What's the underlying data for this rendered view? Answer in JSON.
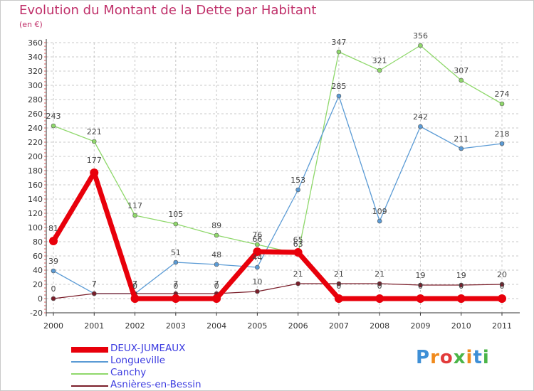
{
  "title": "Evolution du Montant de la Dette par Habitant",
  "subtitle": "(en €)",
  "logo_text": "Proxiti",
  "chart_data": {
    "type": "line",
    "title": "Evolution du Montant de la Dette par Habitant",
    "subtitle": "(en €)",
    "xlabel": "",
    "ylabel": "",
    "categories": [
      "2000",
      "2001",
      "2002",
      "2003",
      "2004",
      "2005",
      "2006",
      "2007",
      "2008",
      "2009",
      "2010",
      "2011"
    ],
    "ylim": [
      -20,
      360
    ],
    "yticks": [
      -20,
      0,
      20,
      40,
      60,
      80,
      100,
      120,
      140,
      160,
      180,
      200,
      220,
      240,
      260,
      280,
      300,
      320,
      340,
      360
    ],
    "grid": true,
    "legend_position": "bottom-left",
    "series": [
      {
        "name": "DEUX-JUMEAUX",
        "color": "#e8000b",
        "values": [
          81,
          177,
          0,
          0,
          0,
          66,
          65,
          0,
          0,
          0,
          0,
          0
        ]
      },
      {
        "name": "Longueville",
        "color": "#5b9bd5",
        "values": [
          39,
          7,
          7,
          51,
          48,
          44,
          153,
          285,
          109,
          242,
          211,
          218
        ]
      },
      {
        "name": "Canchy",
        "color": "#8fd86b",
        "values": [
          243,
          221,
          117,
          105,
          89,
          76,
          63,
          347,
          321,
          356,
          307,
          274
        ]
      },
      {
        "name": "Asnières-en-Bessin",
        "color": "#7a1e2a",
        "values": [
          0,
          7,
          7,
          7,
          7,
          10,
          21,
          21,
          21,
          19,
          19,
          20
        ]
      }
    ],
    "data_labels": [
      [
        "81",
        "177",
        "0",
        "0",
        "0",
        "66",
        "65",
        "0",
        "0",
        "0",
        "0",
        "0"
      ],
      [
        "39",
        "7",
        "7",
        "51",
        "48",
        "44",
        "153",
        "285",
        "109",
        "242",
        "211",
        "218"
      ],
      [
        "243",
        "221",
        "117",
        "105",
        "89",
        "76",
        "63",
        "347",
        "321",
        "356",
        "307",
        "274"
      ],
      [
        "0",
        "7",
        "7",
        "7",
        "7",
        "10",
        "21",
        "21",
        "21",
        "19",
        "19",
        "20"
      ]
    ]
  }
}
